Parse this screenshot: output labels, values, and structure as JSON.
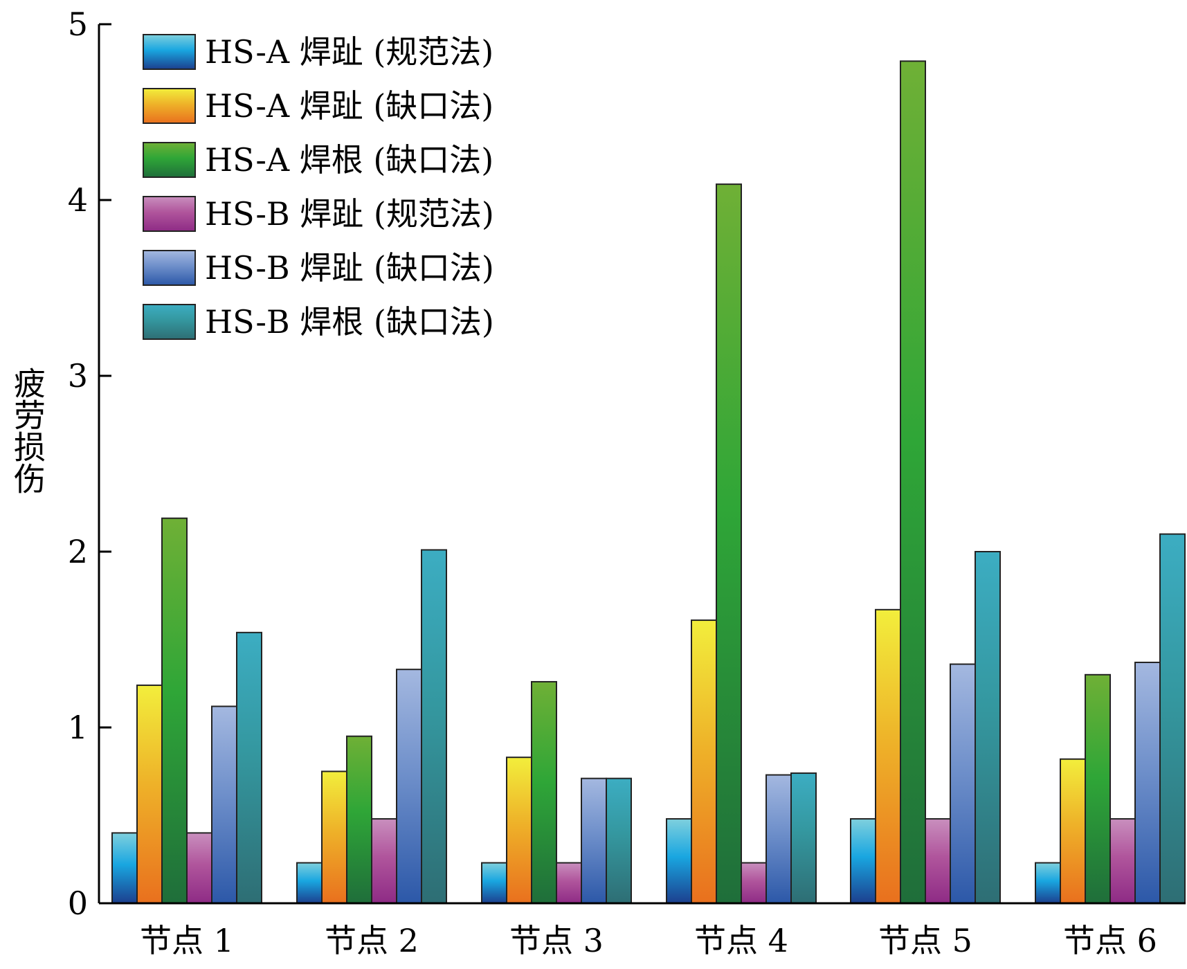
{
  "chart_data": {
    "type": "bar",
    "title": "",
    "xlabel": "",
    "ylabel": "疲劳损伤",
    "ylim": [
      0,
      5
    ],
    "yticks": [
      0,
      1,
      2,
      3,
      4,
      5
    ],
    "grid": false,
    "legend_position": "top-left",
    "categories": [
      "节点 1",
      "节点 2",
      "节点 3",
      "节点 4",
      "节点 5",
      "节点 6"
    ],
    "series": [
      {
        "name": "HS-A 焊趾 (规范法)",
        "values": [
          0.4,
          0.23,
          0.23,
          0.48,
          0.48,
          0.23
        ],
        "color_top": "#7fd0de",
        "color_mid": "#19a6e0",
        "color_bottom": "#1c3f8e"
      },
      {
        "name": "HS-A 焊趾 (缺口法)",
        "values": [
          1.24,
          0.75,
          0.83,
          1.61,
          1.67,
          0.82
        ],
        "color_top": "#f2ee3c",
        "color_mid": "#eeb229",
        "color_bottom": "#e9701e"
      },
      {
        "name": "HS-A 焊根 (缺口法)",
        "values": [
          2.19,
          0.95,
          1.26,
          4.09,
          4.79,
          1.3
        ],
        "color_top": "#6fb036",
        "color_mid": "#2fa637",
        "color_bottom": "#1f6e3a"
      },
      {
        "name": "HS-B 焊趾 (规范法)",
        "values": [
          0.4,
          0.48,
          0.23,
          0.23,
          0.48,
          0.48
        ],
        "color_top": "#c98fbe",
        "color_mid": "#b0559c",
        "color_bottom": "#8e2b85"
      },
      {
        "name": "HS-B 焊趾 (缺口法)",
        "values": [
          1.12,
          1.33,
          0.71,
          0.73,
          1.36,
          1.37
        ],
        "color_top": "#a4b8e0",
        "color_mid": "#6e8fca",
        "color_bottom": "#2c58a8"
      },
      {
        "name": "HS-B 焊根 (缺口法)",
        "values": [
          1.54,
          2.01,
          0.71,
          0.74,
          2.0,
          2.1
        ],
        "color_top": "#3cadc2",
        "color_mid": "#34979f",
        "color_bottom": "#2e6e74"
      }
    ]
  }
}
